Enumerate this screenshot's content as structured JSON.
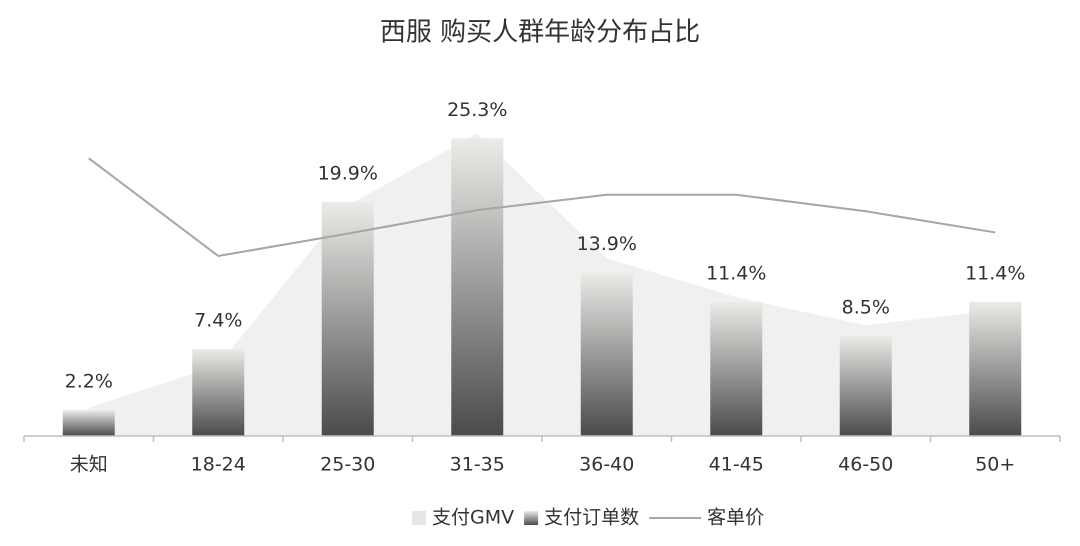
{
  "chart_data": {
    "type": "bar",
    "title": "西服 购买人群年龄分布占比",
    "categories": [
      "未知",
      "18-24",
      "25-30",
      "31-35",
      "36-40",
      "41-45",
      "46-50",
      "50+"
    ],
    "ylim": [
      0,
      30
    ],
    "series": [
      {
        "name": "支付GMV",
        "type": "area",
        "color": "#f0f0f0",
        "values": [
          2.4,
          6.0,
          19.6,
          25.7,
          15.1,
          11.8,
          9.4,
          10.7
        ]
      },
      {
        "name": "支付订单数",
        "type": "bar",
        "color": "#555555",
        "values": [
          2.2,
          7.4,
          19.9,
          25.3,
          13.9,
          11.4,
          8.5,
          11.4
        ],
        "value_labels": [
          "2.2%",
          "7.4%",
          "19.9%",
          "25.3%",
          "13.9%",
          "11.4%",
          "8.5%",
          "11.4%"
        ]
      },
      {
        "name": "客单价",
        "type": "line",
        "color": "#a6a6a6",
        "values": [
          23.6,
          15.3,
          17.2,
          19.2,
          20.5,
          20.5,
          19.1,
          17.3
        ]
      }
    ]
  }
}
